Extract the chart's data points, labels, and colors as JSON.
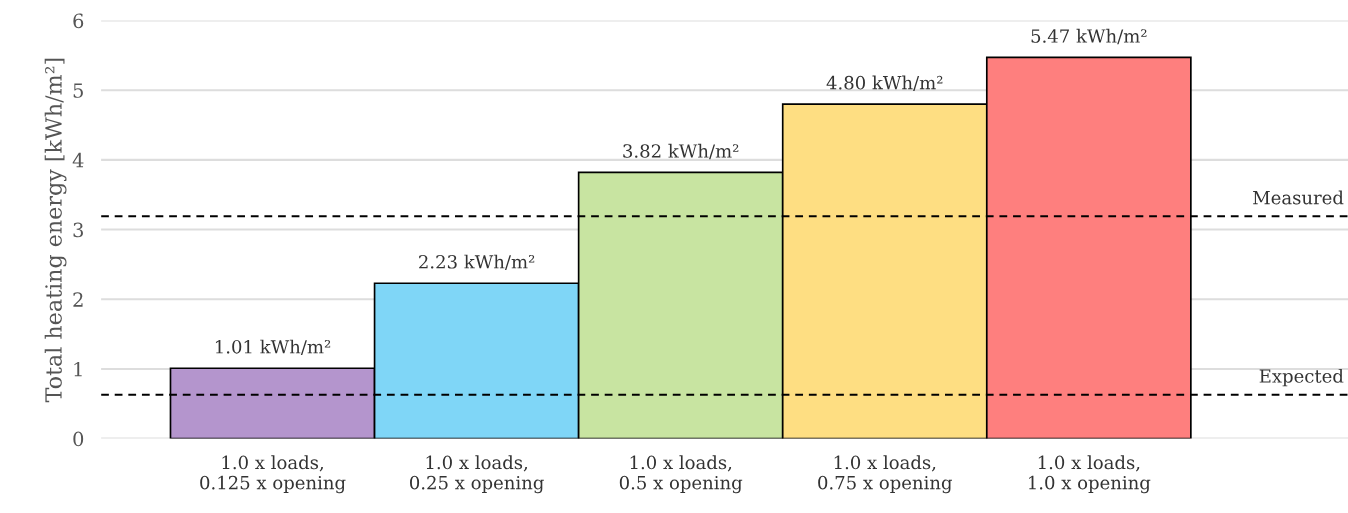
{
  "chart_data": {
    "type": "bar",
    "ylabel": "Total heating energy [kWh/m²]",
    "categories": [
      "1.0 x loads,\n0.125 x opening",
      "1.0 x loads,\n0.25 x opening",
      "1.0 x loads,\n0.5 x opening",
      "1.0 x loads,\n0.75 x opening",
      "1.0 x loads,\n1.0 x opening"
    ],
    "values": [
      1.01,
      2.23,
      3.82,
      4.8,
      5.47
    ],
    "colors": [
      "#b495cd",
      "#7fd6f7",
      "#c8e4a1",
      "#fede82",
      "#fe7f7e"
    ],
    "value_labels": [
      "1.01 kWh/m²",
      "2.23 kWh/m²",
      "3.82 kWh/m²",
      "4.80 kWh/m²",
      "5.47 kWh/m²"
    ],
    "ylim": [
      0,
      6
    ],
    "yticks": [
      0,
      1,
      2,
      3,
      4,
      5,
      6
    ],
    "grid": "y",
    "ref_lines": [
      {
        "axis": "y",
        "value": 3.19,
        "label": "Measured",
        "color": "#000000",
        "line_style": "dashed"
      },
      {
        "axis": "y",
        "value": 0.63,
        "label": "Expected",
        "color": "#000000",
        "line_style": "dashed"
      }
    ]
  }
}
